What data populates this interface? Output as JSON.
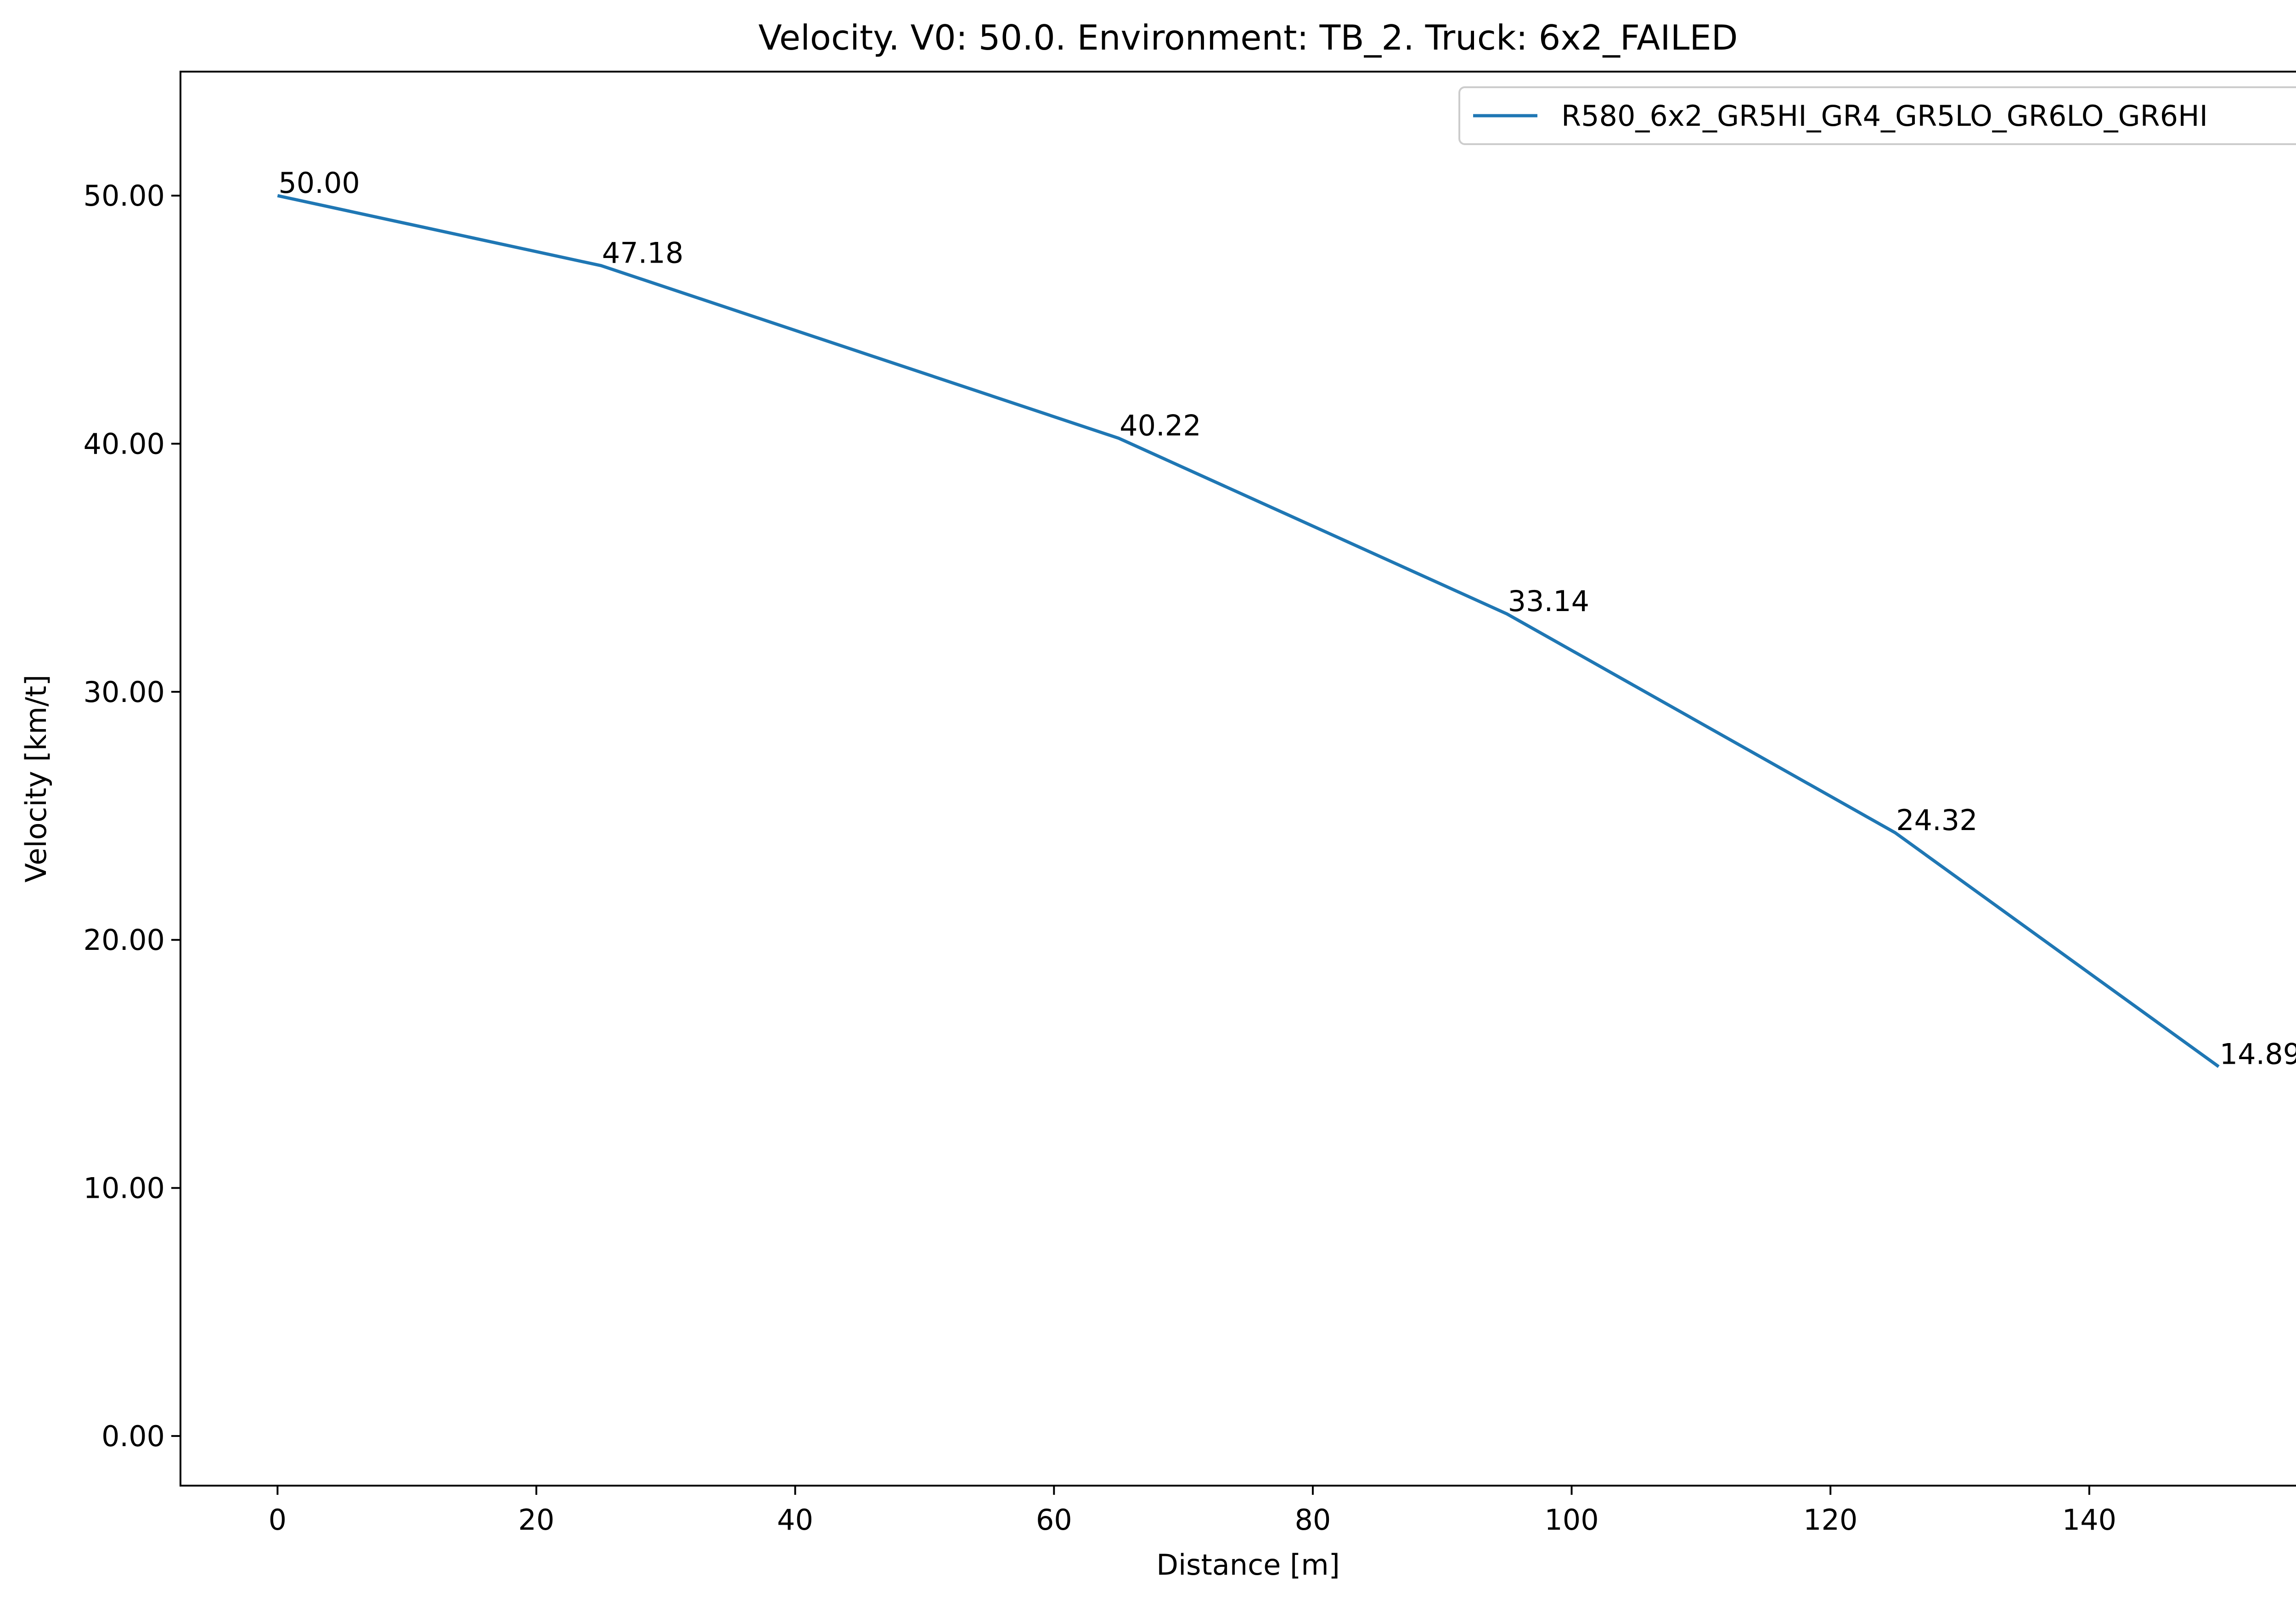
{
  "chart_data": {
    "type": "line",
    "title": "Velocity. V0: 50.0. Environment: TB_2. Truck: 6x2_FAILED",
    "xlabel": "Distance [m]",
    "ylabel": "Velocity [km/t]",
    "xlim": [
      -7.5,
      157.5
    ],
    "ylim": [
      -2.0,
      55.0
    ],
    "xticks": [
      0,
      20,
      40,
      60,
      80,
      100,
      120,
      140
    ],
    "xtick_labels": [
      "0",
      "20",
      "40",
      "60",
      "80",
      "100",
      "120",
      "140"
    ],
    "yticks": [
      0,
      10,
      20,
      30,
      40,
      50
    ],
    "ytick_labels": [
      "0.00",
      "10.00",
      "20.00",
      "30.00",
      "40.00",
      "50.00"
    ],
    "grid": false,
    "legend_position": "top-right",
    "series": [
      {
        "name": "R580_6x2_GR5HI_GR4_GR5LO_GR6LO_GR6HI",
        "color": "#1f77b4",
        "x": [
          0,
          25,
          65,
          95,
          125,
          150
        ],
        "y": [
          50.0,
          47.18,
          40.22,
          33.14,
          24.32,
          14.89
        ],
        "point_labels": [
          "50.00",
          "47.18",
          "40.22",
          "33.14",
          "24.32",
          "14.89"
        ]
      }
    ]
  }
}
